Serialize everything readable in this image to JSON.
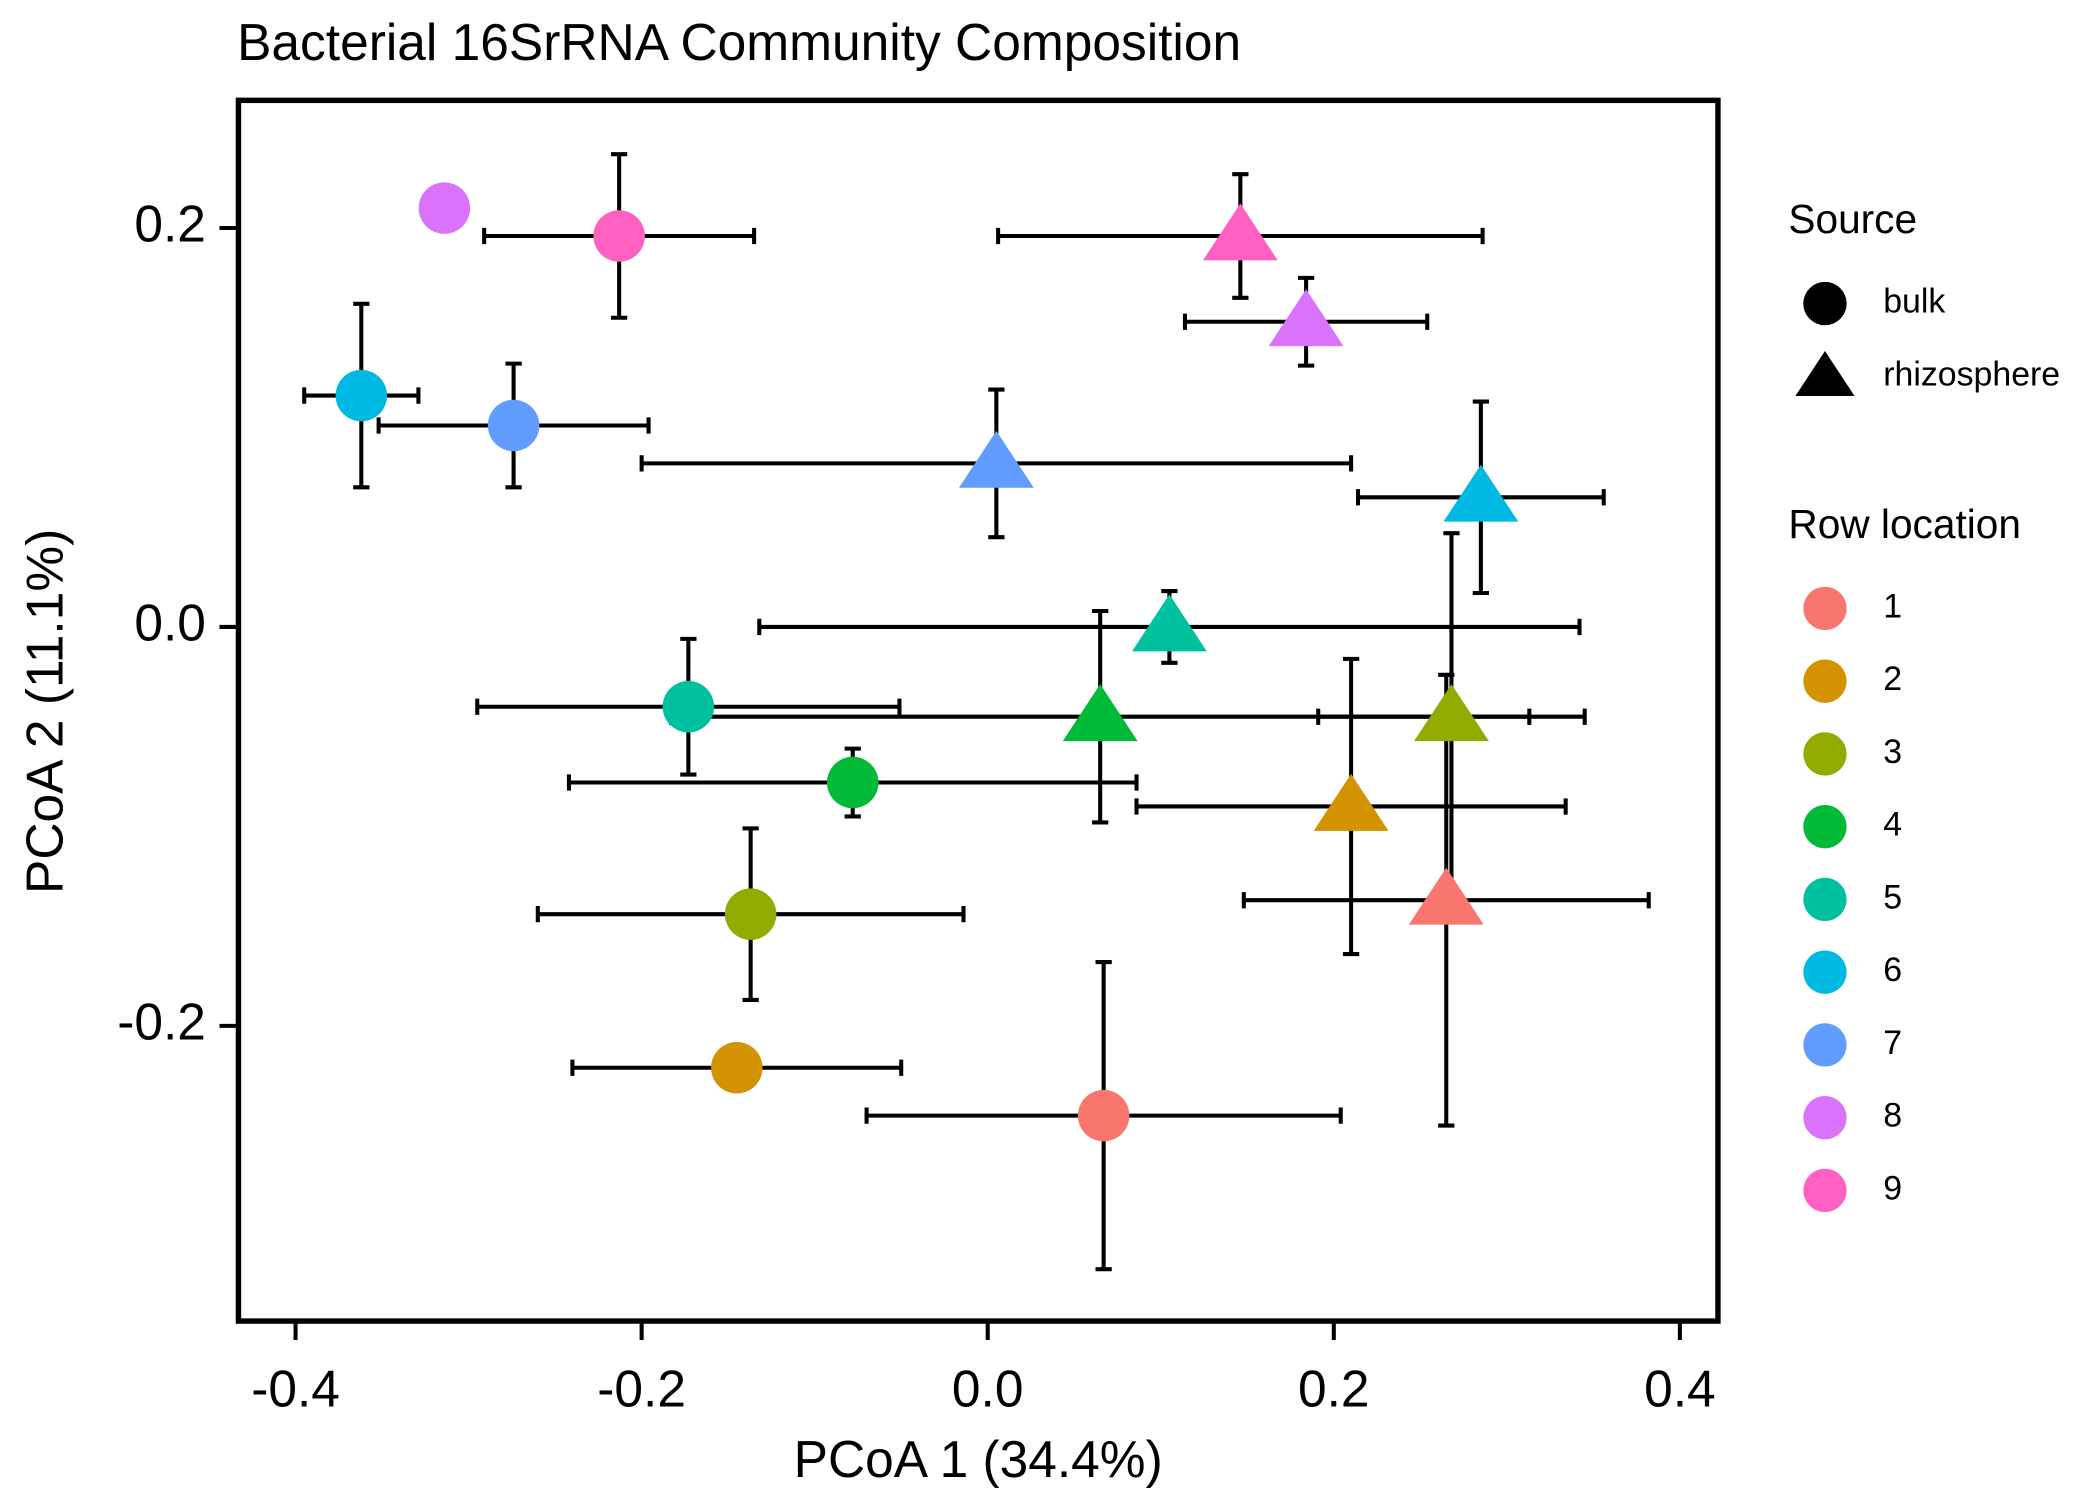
{
  "chart_data": {
    "type": "scatter",
    "title": "Bacterial 16SrRNA Community Composition",
    "x_label": "PCoA 1 (34.4%)",
    "y_label": "PCoA 2 (11.1%)",
    "xlim": [
      -0.433,
      0.422
    ],
    "ylim": [
      -0.348,
      0.264
    ],
    "xticks": [
      -0.4,
      -0.2,
      {
        "value": 0,
        "label": "0.0"
      },
      0.2,
      0.4
    ],
    "yticks": [
      -0.2,
      {
        "value": 0,
        "label": "0.0"
      },
      0.2
    ],
    "shape_legend_title": "Source",
    "sources": [
      "bulk",
      "rhizosphere"
    ],
    "color_legend_title": "Row location",
    "series": [
      {
        "name": "1",
        "color": "#F8766D",
        "x": [
          0.067,
          0.265
        ],
        "y": [
          -0.245,
          -0.137
        ],
        "xerr": [
          0.137,
          0.117
        ],
        "yerr": [
          0.077,
          0.113
        ]
      },
      {
        "name": "2",
        "color": "#D39200",
        "x": [
          -0.145,
          0.21
        ],
        "y": [
          -0.221,
          -0.09
        ],
        "xerr": [
          0.095,
          0.124
        ],
        "yerr": [
          null,
          0.074
        ]
      },
      {
        "name": "3",
        "color": "#93AA00",
        "x": [
          -0.137,
          0.268
        ],
        "y": [
          -0.144,
          -0.045
        ],
        "xerr": [
          0.123,
          0.077
        ],
        "yerr": [
          0.043,
          0.092
        ]
      },
      {
        "name": "4",
        "color": "#00BA38",
        "x": [
          -0.078,
          0.065
        ],
        "y": [
          -0.078,
          -0.045
        ],
        "xerr": [
          0.164,
          0.248
        ],
        "yerr": [
          0.017,
          0.053
        ]
      },
      {
        "name": "5",
        "color": "#00C19F",
        "x": [
          -0.173,
          0.105
        ],
        "y": [
          -0.04,
          0.0
        ],
        "xerr": [
          0.122,
          0.237
        ],
        "yerr": [
          0.034,
          0.018
        ]
      },
      {
        "name": "6",
        "color": "#00B9E3",
        "x": [
          -0.362,
          0.285
        ],
        "y": [
          0.116,
          0.065
        ],
        "xerr": [
          0.033,
          0.071
        ],
        "yerr": [
          0.046,
          0.048
        ]
      },
      {
        "name": "7",
        "color": "#619CFF",
        "x": [
          -0.274,
          0.005
        ],
        "y": [
          0.101,
          0.082
        ],
        "xerr": [
          0.078,
          0.205
        ],
        "yerr": [
          0.031,
          0.037
        ]
      },
      {
        "name": "8",
        "color": "#DB72FB",
        "x": [
          -0.314,
          0.184
        ],
        "y": [
          0.21,
          0.153
        ],
        "xerr": [
          null,
          0.07
        ],
        "yerr": [
          null,
          0.022
        ]
      },
      {
        "name": "9",
        "color": "#FF61C3",
        "x": [
          -0.213,
          0.146
        ],
        "y": [
          0.196,
          0.196
        ],
        "xerr": [
          0.078,
          0.14
        ],
        "yerr": [
          0.041,
          0.031
        ]
      }
    ]
  }
}
